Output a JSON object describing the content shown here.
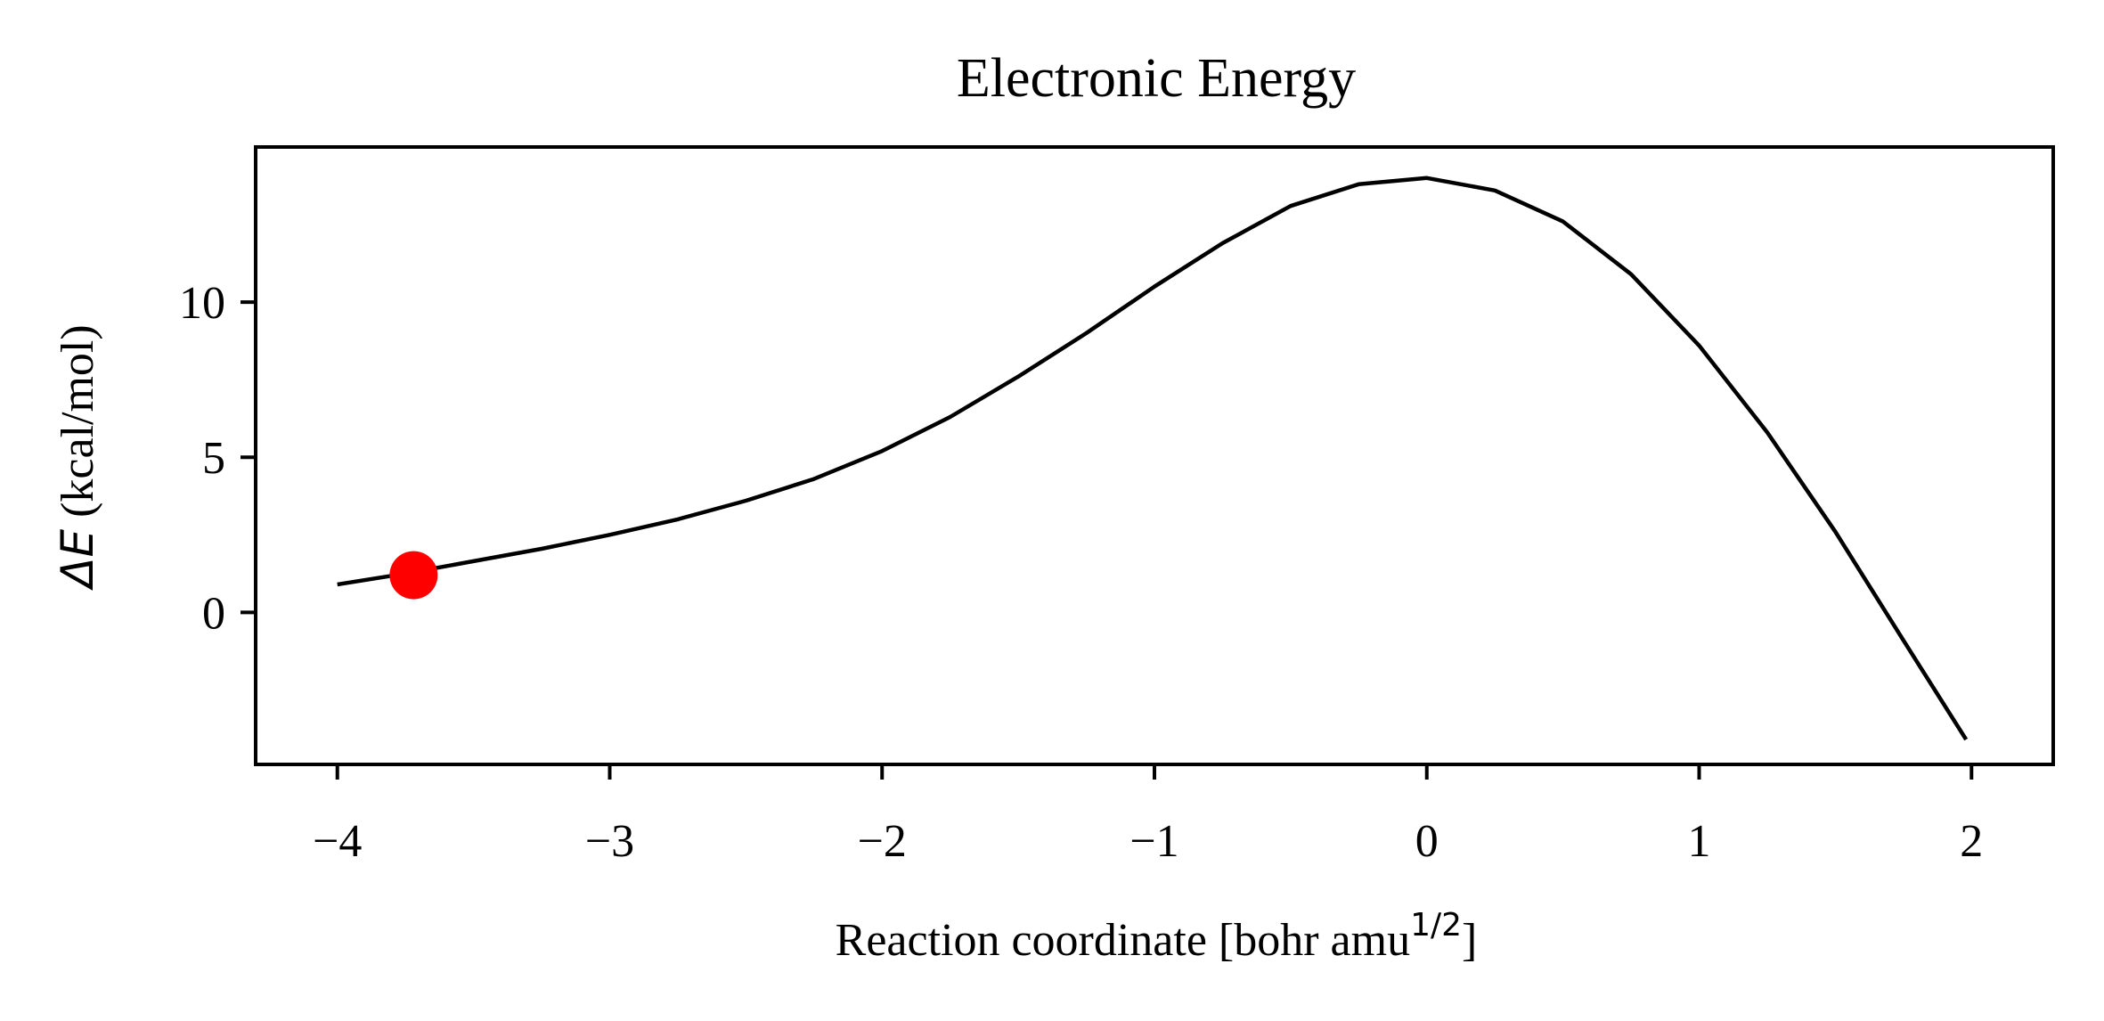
{
  "chart_data": {
    "type": "line",
    "title": "Electronic Energy",
    "xlabel": {
      "prefix": "Reaction coordinate [bohr amu",
      "superscript": "1/2",
      "suffix": "]"
    },
    "ylabel": {
      "symbol": "ΔE",
      "unit": " (kcal/mol)"
    },
    "xlim": [
      -4.3,
      2.3
    ],
    "ylim": [
      -4.9,
      15.0
    ],
    "xticks": [
      -4,
      -3,
      -2,
      -1,
      0,
      1,
      2
    ],
    "xtick_labels": [
      "−4",
      "−3",
      "−2",
      "−1",
      "0",
      "1",
      "2"
    ],
    "yticks": [
      0,
      5,
      10
    ],
    "ytick_labels": [
      "0",
      "5",
      "10"
    ],
    "grid": false,
    "series": [
      {
        "x": [
          -4.0,
          -3.75,
          -3.5,
          -3.25,
          -3.0,
          -2.75,
          -2.5,
          -2.25,
          -2.0,
          -1.75,
          -1.5,
          -1.25,
          -1.0,
          -0.75,
          -0.5,
          -0.25,
          0.0,
          0.25,
          0.5,
          0.75,
          1.0,
          1.25,
          1.5,
          1.75,
          1.98
        ],
        "y": [
          0.9,
          1.25,
          1.65,
          2.05,
          2.5,
          3.0,
          3.6,
          4.3,
          5.2,
          6.3,
          7.6,
          9.0,
          10.5,
          11.9,
          13.1,
          13.8,
          14.0,
          13.6,
          12.6,
          10.9,
          8.6,
          5.8,
          2.6,
          -0.9,
          -4.1
        ],
        "color": "#000000"
      }
    ],
    "marker": {
      "x": -3.72,
      "y": 1.2,
      "color": "#ff0000"
    }
  }
}
